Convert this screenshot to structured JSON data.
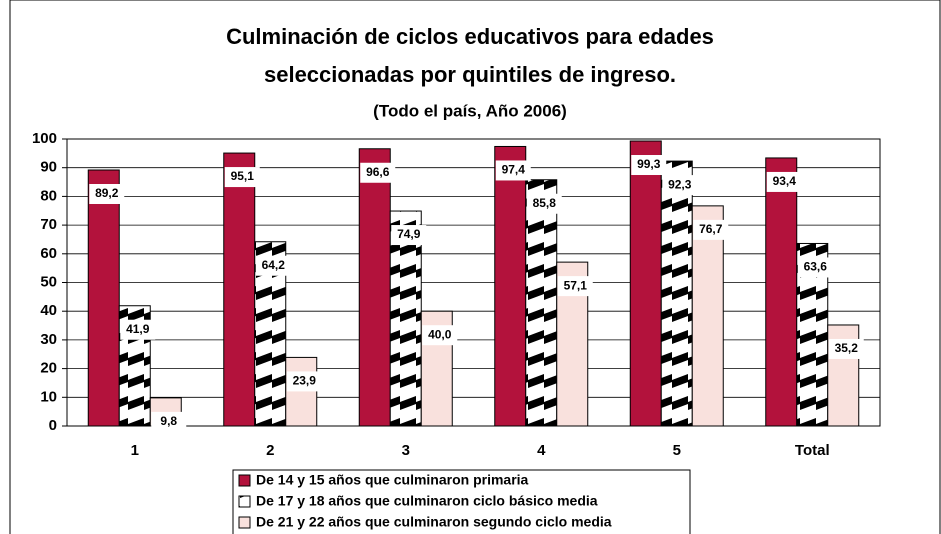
{
  "chart_data": {
    "type": "bar",
    "title": [
      "Culminación de ciclos educativos para edades",
      "seleccionadas por quintiles de ingreso."
    ],
    "subtitle": "(Todo el país, Año 2006)",
    "categories": [
      "1",
      "2",
      "3",
      "4",
      "5",
      "Total"
    ],
    "series": [
      {
        "name": "De 14 y 15 años que culminaron primaria",
        "color": "#b3123c",
        "values": [
          89.2,
          95.1,
          96.6,
          97.4,
          99.3,
          93.4
        ],
        "value_labels": [
          "89,2",
          "95,1",
          "96,6",
          "97,4",
          "99,3",
          "93,4"
        ]
      },
      {
        "name": "De 17 y 18 años que culminaron ciclo básico media",
        "color": "#000000",
        "values": [
          41.9,
          64.2,
          74.9,
          85.8,
          92.3,
          63.6
        ],
        "value_labels": [
          "41,9",
          "64,2",
          "74,9",
          "85,8",
          "92,3",
          "63,6"
        ]
      },
      {
        "name": "De 21 y 22 años que culminaron segundo ciclo media",
        "color": "#f9e1dd",
        "values": [
          9.8,
          23.9,
          40.0,
          57.1,
          76.7,
          35.2
        ],
        "value_labels": [
          "9,8",
          "23,9",
          "40,0",
          "57,1",
          "76,7",
          "35,2"
        ]
      }
    ],
    "ylim": [
      0,
      100
    ],
    "yticks": [
      0,
      10,
      20,
      30,
      40,
      50,
      60,
      70,
      80,
      90,
      100
    ],
    "grid": true
  }
}
